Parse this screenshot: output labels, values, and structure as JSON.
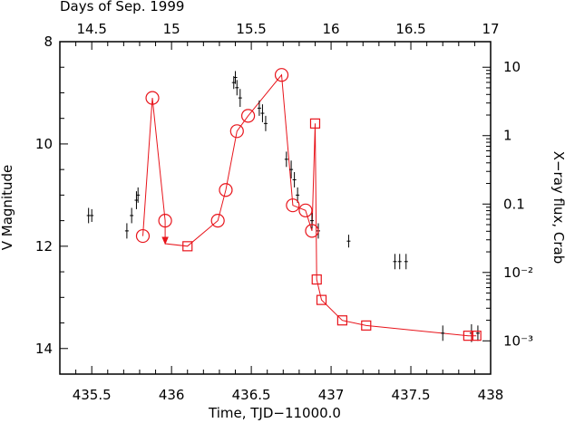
{
  "chart_data": {
    "type": "scatter",
    "xlabel": "Time, TJD−11000.0",
    "ylabel": "V Magnitude",
    "top_label": "Days of Sep. 1999",
    "right_label": "X−ray flux, Crab",
    "xlim": [
      435.3,
      438.0
    ],
    "ylim": [
      14.5,
      8.0
    ],
    "x_ticks": [
      "435.5",
      "436",
      "436.5",
      "437",
      "437.5",
      "438"
    ],
    "y_ticks": [
      "8",
      "10",
      "12",
      "14"
    ],
    "top_ticks": [
      "14.5",
      "15",
      "15.5",
      "16",
      "16.5",
      "17"
    ],
    "top_tick_values": [
      14.5,
      15.0,
      15.5,
      16.0,
      16.5,
      17.0
    ],
    "top_offset": 421.0,
    "right_ticks": [
      "10",
      "1",
      "0.1",
      "10⁻²",
      "10⁻³"
    ],
    "right_tick_flux": [
      10,
      1,
      0.1,
      0.01,
      0.001
    ],
    "right_axis_map": {
      "flux10_mag": 8.5,
      "flux0_001_mag": 13.85
    },
    "colors": {
      "optical": "#000000",
      "xray": "#e8141b"
    },
    "series": [
      {
        "marker": "cross",
        "color": "#000000",
        "points": [
          [
            435.48,
            11.4,
            0.3
          ],
          [
            435.5,
            11.4,
            0.25
          ],
          [
            435.72,
            11.7,
            0.3
          ],
          [
            435.75,
            11.4,
            0.3
          ],
          [
            435.78,
            11.1,
            0.35
          ],
          [
            435.79,
            11.0,
            0.3
          ],
          [
            436.39,
            8.8,
            0.25
          ],
          [
            436.4,
            8.7,
            0.25
          ],
          [
            436.41,
            8.9,
            0.3
          ],
          [
            436.43,
            9.1,
            0.35
          ],
          [
            436.55,
            9.3,
            0.3
          ],
          [
            436.57,
            9.4,
            0.35
          ],
          [
            436.59,
            9.6,
            0.3
          ],
          [
            436.72,
            10.3,
            0.3
          ],
          [
            436.75,
            10.5,
            0.35
          ],
          [
            436.77,
            10.7,
            0.3
          ],
          [
            436.79,
            11.0,
            0.3
          ],
          [
            436.88,
            11.5,
            0.3
          ],
          [
            436.92,
            11.7,
            0.3
          ],
          [
            437.11,
            11.9,
            0.25
          ],
          [
            437.4,
            12.3,
            0.3
          ],
          [
            437.43,
            12.3,
            0.3
          ],
          [
            437.47,
            12.3,
            0.3
          ],
          [
            437.7,
            13.7,
            0.3
          ],
          [
            437.88,
            13.7,
            0.35
          ],
          [
            437.92,
            13.7,
            0.3
          ]
        ]
      },
      {
        "marker": "circle",
        "color": "#e8141b",
        "points": [
          [
            435.82,
            11.8
          ],
          [
            435.88,
            9.1
          ],
          [
            435.96,
            11.5
          ],
          [
            436.29,
            11.5
          ],
          [
            436.34,
            10.9
          ],
          [
            436.41,
            9.75
          ],
          [
            436.48,
            9.45
          ],
          [
            436.69,
            8.65
          ],
          [
            436.76,
            11.2
          ],
          [
            436.84,
            11.3
          ],
          [
            436.88,
            11.7
          ]
        ]
      },
      {
        "marker": "square",
        "color": "#e8141b",
        "points": [
          [
            436.1,
            12.0
          ],
          [
            436.9,
            9.6
          ],
          [
            436.91,
            12.65
          ],
          [
            436.94,
            13.05
          ],
          [
            437.07,
            13.45
          ],
          [
            437.22,
            13.55
          ],
          [
            437.86,
            13.75
          ],
          [
            437.91,
            13.75
          ]
        ]
      }
    ],
    "red_path": [
      [
        435.82,
        11.8
      ],
      [
        435.88,
        9.1
      ],
      [
        435.96,
        11.5
      ],
      [
        435.96,
        11.95
      ],
      [
        436.1,
        12.0
      ],
      [
        436.29,
        11.5
      ],
      [
        436.34,
        10.9
      ],
      [
        436.41,
        9.75
      ],
      [
        436.48,
        9.45
      ],
      [
        436.69,
        8.65
      ],
      [
        436.76,
        11.2
      ],
      [
        436.84,
        11.3
      ],
      [
        436.88,
        11.7
      ],
      [
        436.9,
        9.6
      ],
      [
        436.91,
        12.65
      ],
      [
        436.94,
        13.05
      ],
      [
        437.07,
        13.45
      ],
      [
        437.22,
        13.55
      ],
      [
        437.86,
        13.75
      ],
      [
        437.91,
        13.75
      ]
    ],
    "upper_limit": {
      "x": 435.96,
      "y_from": 11.5,
      "y_to": 11.95
    }
  }
}
